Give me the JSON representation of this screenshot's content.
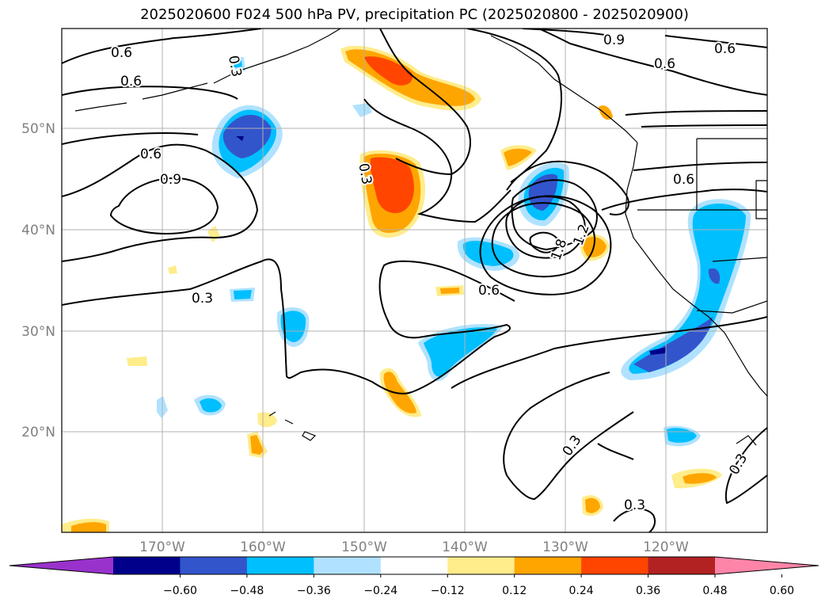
{
  "title": "2025020600 F024 500 hPa PV, precipitation PC (2025020800 - 2025020900)",
  "map": {
    "lat_ticks": [
      "50°N",
      "40°N",
      "30°N",
      "20°N"
    ],
    "lon_ticks": [
      "170°W",
      "160°W",
      "150°W",
      "140°W",
      "130°W",
      "120°W"
    ],
    "contour_labels": [
      "0.6",
      "0.6",
      "0.6",
      "0.9",
      "0.3",
      "0.9",
      "0.6",
      "0.6",
      "0.6",
      "1.8",
      "1.2",
      "0.6",
      "0.3",
      "0.3",
      "0.3",
      "0.3",
      "0.3"
    ]
  },
  "colorbar": {
    "ticks": [
      "−0.60",
      "−0.48",
      "−0.36",
      "−0.24",
      "−0.12",
      "0.12",
      "0.24",
      "0.36",
      "0.48",
      "0.60"
    ],
    "colors": [
      "#9932cc",
      "#00008b",
      "#3355cc",
      "#00bfff",
      "#b0e2ff",
      "#ffffff",
      "#ffec8b",
      "#ffa500",
      "#ff4500",
      "#b22222",
      "#ff85a8"
    ]
  }
}
